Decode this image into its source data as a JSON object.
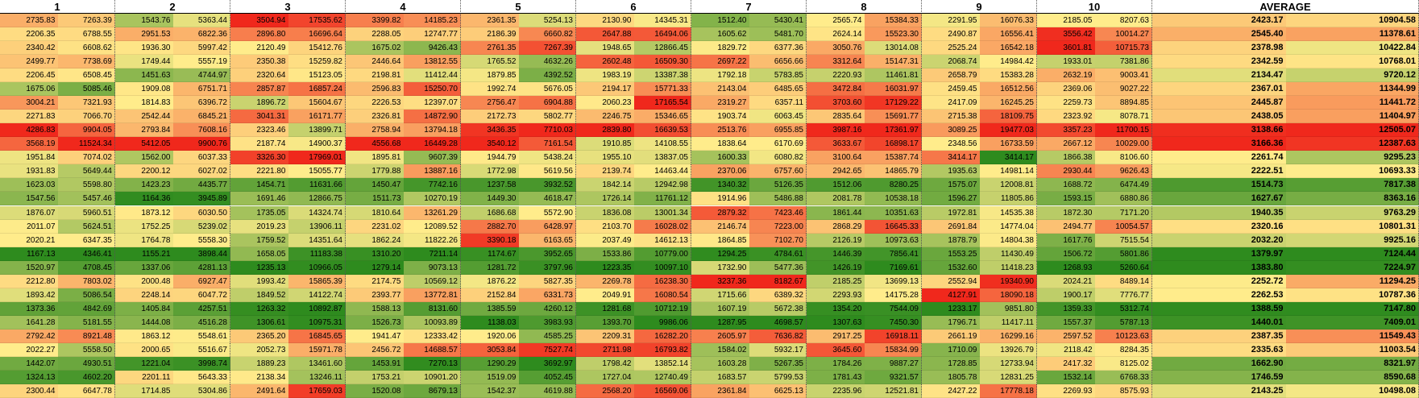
{
  "chart_data": {
    "type": "heatmap",
    "columns": [
      "1",
      "2",
      "3",
      "4",
      "5",
      "6",
      "7",
      "8",
      "9",
      "10",
      "AVERAGE"
    ],
    "colors": {
      "low": "#2e8b1e",
      "mid": "#ffec8b",
      "high": "#f0281c"
    },
    "rows": [
      [
        [
          2735.83,
          7263.39
        ],
        [
          1543.76,
          5363.44
        ],
        [
          3504.94,
          17535.62
        ],
        [
          3399.82,
          14185.23
        ],
        [
          2361.35,
          5254.13
        ],
        [
          2130.9,
          14345.31
        ],
        [
          1512.4,
          5430.41
        ],
        [
          2565.74,
          15384.33
        ],
        [
          2291.95,
          16076.33
        ],
        [
          2185.05,
          8207.63
        ],
        [
          2423.17,
          10904.58
        ]
      ],
      [
        [
          2206.35,
          6788.55
        ],
        [
          2951.53,
          6822.36
        ],
        [
          2896.8,
          16696.64
        ],
        [
          2288.05,
          12747.77
        ],
        [
          2186.39,
          6660.82
        ],
        [
          2647.88,
          16494.06
        ],
        [
          1605.62,
          5481.7
        ],
        [
          2624.14,
          15523.3
        ],
        [
          2490.87,
          16556.41
        ],
        [
          3556.42,
          10014.27
        ],
        [
          2545.4,
          11378.61
        ]
      ],
      [
        [
          2340.42,
          6608.62
        ],
        [
          1936.3,
          5997.42
        ],
        [
          2120.49,
          15412.76
        ],
        [
          1675.02,
          9426.43
        ],
        [
          2761.35,
          7267.39
        ],
        [
          1948.65,
          12866.45
        ],
        [
          1829.72,
          6377.36
        ],
        [
          3050.76,
          13014.08
        ],
        [
          2525.24,
          16542.18
        ],
        [
          3601.81,
          10715.73
        ],
        [
          2378.98,
          10422.84
        ]
      ],
      [
        [
          2499.77,
          7738.69
        ],
        [
          1749.44,
          5557.19
        ],
        [
          2350.38,
          15259.82
        ],
        [
          2446.64,
          13812.55
        ],
        [
          1765.52,
          4632.26
        ],
        [
          2602.48,
          16509.3
        ],
        [
          2697.22,
          6656.66
        ],
        [
          3312.64,
          15147.31
        ],
        [
          2068.74,
          14984.42
        ],
        [
          1933.01,
          7381.86
        ],
        [
          2342.59,
          10768.01
        ]
      ],
      [
        [
          2206.45,
          6508.45
        ],
        [
          1451.63,
          4744.97
        ],
        [
          2320.64,
          15123.05
        ],
        [
          2198.81,
          11412.44
        ],
        [
          1879.85,
          4392.52
        ],
        [
          1983.19,
          13387.38
        ],
        [
          1792.18,
          5783.85
        ],
        [
          2220.93,
          11461.81
        ],
        [
          2658.79,
          15383.28
        ],
        [
          2632.19,
          9003.41
        ],
        [
          2134.47,
          9720.12
        ]
      ],
      [
        [
          1675.06,
          5085.46
        ],
        [
          1909.08,
          6751.71
        ],
        [
          2857.87,
          16857.24
        ],
        [
          2596.83,
          15250.7
        ],
        [
          1992.74,
          5676.05
        ],
        [
          2194.17,
          15771.33
        ],
        [
          2143.04,
          6485.65
        ],
        [
          3472.84,
          16031.97
        ],
        [
          2459.45,
          16512.56
        ],
        [
          2369.06,
          9027.22
        ],
        [
          2367.01,
          11344.99
        ]
      ],
      [
        [
          3004.21,
          7321.93
        ],
        [
          1814.83,
          6396.72
        ],
        [
          1896.72,
          15604.67
        ],
        [
          2226.53,
          12397.07
        ],
        [
          2756.47,
          6904.88
        ],
        [
          2060.23,
          17165.54
        ],
        [
          2319.27,
          6357.11
        ],
        [
          3703.6,
          17129.22
        ],
        [
          2417.09,
          16245.25
        ],
        [
          2259.73,
          8894.85
        ],
        [
          2445.87,
          11441.72
        ]
      ],
      [
        [
          2271.83,
          7066.7
        ],
        [
          2542.44,
          6845.21
        ],
        [
          3041.31,
          16171.77
        ],
        [
          2326.81,
          14872.9
        ],
        [
          2172.73,
          5802.77
        ],
        [
          2246.75,
          15346.65
        ],
        [
          1903.74,
          6063.45
        ],
        [
          2835.64,
          15691.77
        ],
        [
          2715.38,
          18109.75
        ],
        [
          2323.92,
          8078.71
        ],
        [
          2438.05,
          11404.97
        ]
      ],
      [
        [
          4286.83,
          9904.05
        ],
        [
          2793.84,
          7608.16
        ],
        [
          2323.46,
          13899.71
        ],
        [
          2758.94,
          13794.18
        ],
        [
          3436.35,
          7710.03
        ],
        [
          2839.8,
          16639.53
        ],
        [
          2513.76,
          6955.85
        ],
        [
          3987.16,
          17361.97
        ],
        [
          3089.25,
          19477.03
        ],
        [
          3357.23,
          11700.15
        ],
        [
          3138.66,
          12505.07
        ]
      ],
      [
        [
          3568.19,
          11524.34
        ],
        [
          5412.05,
          9900.76
        ],
        [
          2187.74,
          14900.37
        ],
        [
          4556.68,
          16449.28
        ],
        [
          3540.12,
          7161.54
        ],
        [
          1910.85,
          14108.55
        ],
        [
          1838.64,
          6170.69
        ],
        [
          3633.67,
          16898.17
        ],
        [
          2348.56,
          16733.59
        ],
        [
          2667.12,
          10029.0
        ],
        [
          3166.36,
          12387.63
        ]
      ],
      [
        [
          1951.84,
          7074.02
        ],
        [
          1562.0,
          6037.33
        ],
        [
          3326.3,
          17969.01
        ],
        [
          1895.81,
          9607.39
        ],
        [
          1944.79,
          5438.24
        ],
        [
          1955.1,
          13837.05
        ],
        [
          1600.33,
          6080.82
        ],
        [
          3100.64,
          15387.74
        ],
        [
          3414.17,
          3414.17
        ],
        [
          1866.38,
          8106.6
        ],
        [
          2261.74,
          9295.23
        ]
      ],
      [
        [
          1931.83,
          5649.44
        ],
        [
          2200.12,
          6027.02
        ],
        [
          2221.8,
          15055.77
        ],
        [
          1779.88,
          13887.16
        ],
        [
          1772.98,
          5619.56
        ],
        [
          2139.74,
          14463.44
        ],
        [
          2370.06,
          6757.6
        ],
        [
          2942.65,
          14865.79
        ],
        [
          1935.63,
          14981.14
        ],
        [
          2930.44,
          9626.43
        ],
        [
          2222.51,
          10693.33
        ]
      ],
      [
        [
          1623.03,
          5598.8
        ],
        [
          1423.23,
          4435.77
        ],
        [
          1454.71,
          11631.66
        ],
        [
          1450.47,
          7742.16
        ],
        [
          1237.58,
          3932.52
        ],
        [
          1842.14,
          12942.98
        ],
        [
          1340.32,
          5126.35
        ],
        [
          1512.06,
          8280.25
        ],
        [
          1575.07,
          12008.81
        ],
        [
          1688.72,
          6474.49
        ],
        [
          1514.73,
          7817.38
        ]
      ],
      [
        [
          1547.56,
          5457.46
        ],
        [
          1164.36,
          3945.89
        ],
        [
          1691.46,
          12866.75
        ],
        [
          1511.73,
          10270.19
        ],
        [
          1449.3,
          4618.47
        ],
        [
          1726.14,
          11761.12
        ],
        [
          1914.96,
          5486.88
        ],
        [
          2081.78,
          10538.18
        ],
        [
          1596.27,
          11805.86
        ],
        [
          1593.15,
          6880.86
        ],
        [
          1627.67,
          8363.16
        ]
      ],
      [
        [
          1876.07,
          5960.51
        ],
        [
          1873.12,
          6030.5
        ],
        [
          1735.05,
          14324.74
        ],
        [
          1810.64,
          13261.29
        ],
        [
          1686.68,
          5572.9
        ],
        [
          1836.08,
          13001.34
        ],
        [
          2879.32,
          7423.46
        ],
        [
          1861.44,
          10351.63
        ],
        [
          1972.81,
          14535.38
        ],
        [
          1872.3,
          7171.2
        ],
        [
          1940.35,
          9763.29
        ]
      ],
      [
        [
          2011.07,
          5624.51
        ],
        [
          1752.25,
          5239.02
        ],
        [
          2019.23,
          13906.11
        ],
        [
          2231.02,
          12089.52
        ],
        [
          2882.7,
          6428.97
        ],
        [
          2103.7,
          16028.02
        ],
        [
          2146.74,
          7223.0
        ],
        [
          2868.29,
          16645.33
        ],
        [
          2691.84,
          14774.04
        ],
        [
          2494.77,
          10054.57
        ],
        [
          2320.16,
          10801.31
        ]
      ],
      [
        [
          2020.21,
          6347.35
        ],
        [
          1764.78,
          5558.3
        ],
        [
          1759.52,
          14351.64
        ],
        [
          1862.24,
          11822.26
        ],
        [
          3390.18,
          6163.65
        ],
        [
          2037.49,
          14612.13
        ],
        [
          1864.85,
          7102.7
        ],
        [
          2126.19,
          10973.63
        ],
        [
          1878.79,
          14804.38
        ],
        [
          1617.76,
          7515.54
        ],
        [
          2032.2,
          9925.16
        ]
      ],
      [
        [
          1167.13,
          4346.41
        ],
        [
          1155.21,
          3898.44
        ],
        [
          1658.05,
          11183.38
        ],
        [
          1310.2,
          7211.14
        ],
        [
          1174.67,
          3952.65
        ],
        [
          1533.86,
          10779.0
        ],
        [
          1294.25,
          4784.61
        ],
        [
          1446.39,
          7856.41
        ],
        [
          1553.25,
          11430.49
        ],
        [
          1506.72,
          5801.86
        ],
        [
          1379.97,
          7124.44
        ]
      ],
      [
        [
          1520.97,
          4708.45
        ],
        [
          1337.06,
          4281.13
        ],
        [
          1235.13,
          10966.05
        ],
        [
          1279.14,
          9073.13
        ],
        [
          1281.72,
          3797.96
        ],
        [
          1223.35,
          10097.1
        ],
        [
          1732.9,
          5477.36
        ],
        [
          1426.19,
          7169.61
        ],
        [
          1532.6,
          11418.23
        ],
        [
          1268.93,
          5260.64
        ],
        [
          1383.8,
          7224.97
        ]
      ],
      [
        [
          2212.8,
          7803.02
        ],
        [
          2000.48,
          6927.47
        ],
        [
          1993.42,
          15865.39
        ],
        [
          2174.75,
          10569.12
        ],
        [
          1876.22,
          5827.35
        ],
        [
          2269.78,
          16238.3
        ],
        [
          3237.36,
          8182.67
        ],
        [
          2185.25,
          13699.13
        ],
        [
          2552.94,
          19340.9
        ],
        [
          2024.21,
          8489.14
        ],
        [
          2252.72,
          11294.25
        ]
      ],
      [
        [
          1893.42,
          5086.54
        ],
        [
          2248.14,
          6047.72
        ],
        [
          1849.52,
          14122.74
        ],
        [
          2393.77,
          13772.81
        ],
        [
          2152.84,
          6331.73
        ],
        [
          2049.91,
          16080.54
        ],
        [
          1715.66,
          6389.32
        ],
        [
          2293.93,
          14175.28
        ],
        [
          4127.91,
          18090.18
        ],
        [
          1900.17,
          7776.77
        ],
        [
          2262.53,
          10787.36
        ]
      ],
      [
        [
          1373.36,
          4842.69
        ],
        [
          1405.84,
          4257.51
        ],
        [
          1263.32,
          10892.87
        ],
        [
          1588.13,
          8131.6
        ],
        [
          1385.59,
          4260.12
        ],
        [
          1281.68,
          10712.19
        ],
        [
          1607.19,
          5672.38
        ],
        [
          1354.2,
          7544.09
        ],
        [
          1233.17,
          9851.8
        ],
        [
          1359.33,
          5312.74
        ],
        [
          1388.59,
          7147.8
        ]
      ],
      [
        [
          1641.28,
          5181.55
        ],
        [
          1444.08,
          4516.28
        ],
        [
          1306.61,
          10975.31
        ],
        [
          1526.73,
          10093.89
        ],
        [
          1138.03,
          3983.93
        ],
        [
          1393.7,
          9986.06
        ],
        [
          1287.95,
          4698.57
        ],
        [
          1307.63,
          7450.3
        ],
        [
          1796.71,
          11417.11
        ],
        [
          1557.37,
          5787.13
        ],
        [
          1440.01,
          7409.01
        ]
      ],
      [
        [
          2792.42,
          8921.48
        ],
        [
          1863.12,
          5548.61
        ],
        [
          2365.2,
          16845.65
        ],
        [
          1941.47,
          12333.42
        ],
        [
          1920.06,
          4585.25
        ],
        [
          2209.31,
          16282.2
        ],
        [
          2605.97,
          7636.82
        ],
        [
          2917.25,
          16918.11
        ],
        [
          2661.19,
          16299.16
        ],
        [
          2597.52,
          10123.63
        ],
        [
          2387.35,
          11549.43
        ]
      ],
      [
        [
          2022.27,
          5558.5
        ],
        [
          2000.65,
          5516.67
        ],
        [
          2052.73,
          15971.78
        ],
        [
          2456.72,
          14688.57
        ],
        [
          3053.84,
          7527.74
        ],
        [
          2711.98,
          16793.82
        ],
        [
          1584.02,
          5932.17
        ],
        [
          3645.6,
          15834.99
        ],
        [
          1710.09,
          13926.79
        ],
        [
          2118.42,
          8284.35
        ],
        [
          2335.63,
          11003.54
        ]
      ],
      [
        [
          1442.07,
          4930.51
        ],
        [
          1221.04,
          3998.74
        ],
        [
          1889.23,
          13461.6
        ],
        [
          1453.91,
          7270.13
        ],
        [
          1290.29,
          3692.97
        ],
        [
          1798.42,
          13852.14
        ],
        [
          1603.28,
          5267.35
        ],
        [
          1784.26,
          9887.27
        ],
        [
          1728.85,
          12733.94
        ],
        [
          2417.32,
          8125.02
        ],
        [
          1662.9,
          8321.97
        ]
      ],
      [
        [
          1324.13,
          4602.2
        ],
        [
          2201.11,
          5643.33
        ],
        [
          2138.34,
          13246.11
        ],
        [
          1753.21,
          10901.2
        ],
        [
          1519.09,
          4052.45
        ],
        [
          1727.04,
          12740.49
        ],
        [
          1683.57,
          5799.53
        ],
        [
          1781.43,
          9321.57
        ],
        [
          1805.78,
          12831.25
        ],
        [
          1532.14,
          6768.33
        ],
        [
          1746.59,
          8590.68
        ]
      ],
      [
        [
          2300.44,
          6647.78
        ],
        [
          1714.85,
          5304.86
        ],
        [
          2491.64,
          17659.03
        ],
        [
          1520.08,
          8679.13
        ],
        [
          1542.37,
          4619.88
        ],
        [
          2568.2,
          16569.06
        ],
        [
          2361.84,
          6625.13
        ],
        [
          2235.96,
          12521.81
        ],
        [
          2427.22,
          17778.18
        ],
        [
          2269.93,
          8575.93
        ],
        [
          2143.25,
          10498.08
        ]
      ]
    ]
  }
}
